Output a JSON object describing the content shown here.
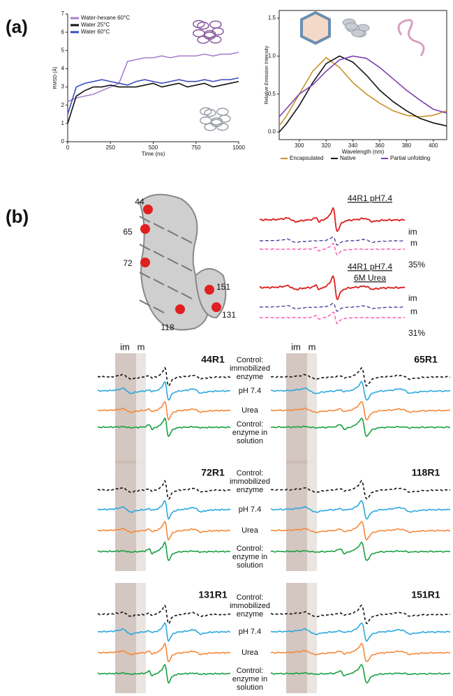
{
  "panel_labels": [
    "(a)",
    "(b)"
  ],
  "chart_data": [
    {
      "type": "line",
      "ylabel": "RMSD (Å)",
      "xlabel": "Time (ns)",
      "x": [
        0,
        50,
        100,
        150,
        200,
        250,
        300,
        350,
        400,
        450,
        500,
        550,
        600,
        650,
        700,
        750,
        800,
        850,
        900,
        950,
        1000
      ],
      "series": [
        {
          "name": "Water-hexane 60°C",
          "color": "#a77fcf",
          "values": [
            2.2,
            2.4,
            2.5,
            2.6,
            2.8,
            3.0,
            3.2,
            4.4,
            4.5,
            4.6,
            4.6,
            4.7,
            4.6,
            4.7,
            4.7,
            4.7,
            4.8,
            4.7,
            4.8,
            4.8,
            4.9
          ]
        },
        {
          "name": "Water 25°C",
          "color": "#111111",
          "values": [
            1.0,
            2.5,
            2.8,
            3.0,
            3.0,
            3.1,
            3.0,
            3.0,
            3.0,
            3.1,
            3.2,
            3.0,
            3.1,
            3.2,
            3.0,
            3.1,
            3.2,
            3.0,
            3.1,
            3.2,
            3.3
          ]
        },
        {
          "name": "Water 60°C",
          "color": "#3b4cc0",
          "values": [
            1.5,
            3.0,
            3.2,
            3.3,
            3.4,
            3.3,
            3.2,
            3.1,
            3.3,
            3.4,
            3.3,
            3.2,
            3.3,
            3.4,
            3.3,
            3.3,
            3.4,
            3.3,
            3.4,
            3.4,
            3.5
          ]
        }
      ],
      "xlim": [
        0,
        1000
      ],
      "ylim": [
        0,
        7
      ],
      "xticks": [
        0,
        250,
        500,
        750,
        1000
      ],
      "yticks": [
        0,
        1,
        2,
        3,
        4,
        5,
        6,
        7
      ],
      "legend": "top-left"
    },
    {
      "type": "line",
      "ylabel": "Relative Emission Intensity",
      "xlabel": "Wavelength (nm)",
      "x": [
        285,
        290,
        300,
        310,
        320,
        330,
        340,
        350,
        360,
        370,
        380,
        390,
        400,
        410
      ],
      "series": [
        {
          "name": "Encapsulated",
          "color": "#c8922a",
          "values": [
            0.08,
            0.2,
            0.5,
            0.8,
            0.98,
            0.85,
            0.65,
            0.5,
            0.38,
            0.28,
            0.22,
            0.2,
            0.22,
            0.28
          ]
        },
        {
          "name": "Native",
          "color": "#111111",
          "values": [
            0.0,
            0.1,
            0.35,
            0.65,
            0.9,
            1.0,
            0.92,
            0.75,
            0.55,
            0.4,
            0.28,
            0.18,
            0.12,
            0.08
          ]
        },
        {
          "name": "Partial unfolding",
          "color": "#7b3fb0",
          "values": [
            0.2,
            0.3,
            0.5,
            0.62,
            0.8,
            0.95,
            1.0,
            0.97,
            0.85,
            0.7,
            0.55,
            0.42,
            0.3,
            0.25
          ]
        }
      ],
      "xlim": [
        285,
        410
      ],
      "ylim": [
        -0.1,
        1.6
      ],
      "xticks": [
        300,
        320,
        340,
        360,
        380,
        400
      ],
      "yticks": [
        {
          "value": 0,
          "label": "0.0"
        },
        0.5,
        {
          "value": 1,
          "label": "1.0"
        },
        1.5
      ],
      "legend": "bottom"
    }
  ],
  "structure": {
    "residues": [
      "44",
      "65",
      "72",
      "151",
      "131",
      "118"
    ]
  },
  "epr_inset": {
    "top": {
      "title": "44R1 pH7.4",
      "labels": [
        "im",
        "m"
      ],
      "percent": "35%"
    },
    "bottom": {
      "title": "44R1 pH7.4",
      "subtitle": "6M Urea",
      "labels": [
        "im",
        "m"
      ],
      "percent": "31%"
    }
  },
  "epr_panels": {
    "band_labels": [
      "im",
      "m"
    ],
    "rows": [
      {
        "names": [
          "44R1",
          "65R1"
        ],
        "traces": [
          "Control: immobilized enzyme",
          "pH 7.4",
          "Urea",
          "Control: enzyme in solution"
        ]
      },
      {
        "names": [
          "72R1",
          "118R1"
        ],
        "traces": [
          "Control: immobilized enzyme",
          "pH 7.4",
          "Urea",
          "Control: enzyme in solution"
        ]
      },
      {
        "names": [
          "131R1",
          "151R1"
        ],
        "traces": [
          "Control: immobilized enzyme",
          "pH 7.4",
          "Urea",
          "Control: enzyme in solution"
        ]
      }
    ]
  }
}
